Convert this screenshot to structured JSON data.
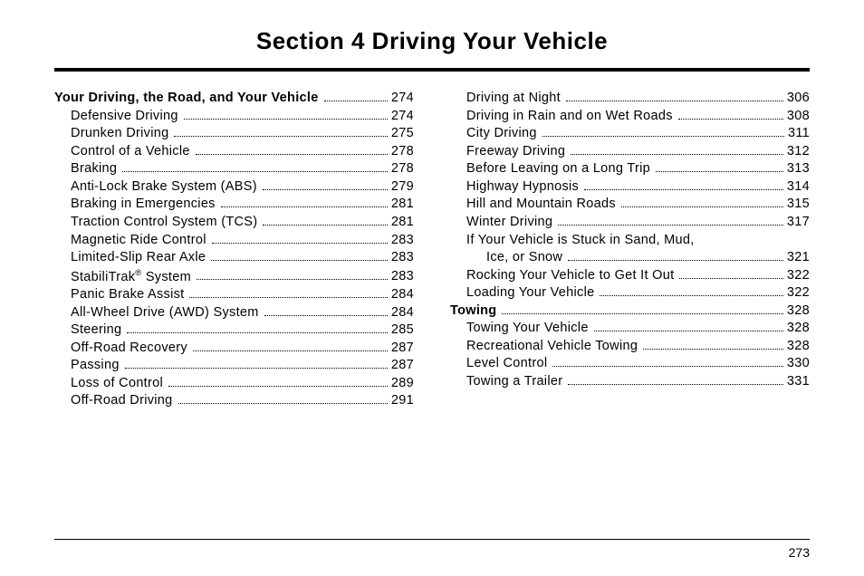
{
  "title": "Section  4    Driving Your Vehicle",
  "page_number": "273",
  "left_column": [
    {
      "label": "Your Driving, the Road, and Your Vehicle",
      "page": "274",
      "bold": true,
      "indent": 0
    },
    {
      "label": "Defensive Driving",
      "page": "274",
      "indent": 1
    },
    {
      "label": "Drunken Driving",
      "page": "275",
      "indent": 1
    },
    {
      "label": "Control of a Vehicle",
      "page": "278",
      "indent": 1
    },
    {
      "label": "Braking",
      "page": "278",
      "indent": 1
    },
    {
      "label": "Anti-Lock Brake System (ABS)",
      "page": "279",
      "indent": 1
    },
    {
      "label": "Braking in Emergencies",
      "page": "281",
      "indent": 1
    },
    {
      "label": "Traction Control System (TCS)",
      "page": "281",
      "indent": 1
    },
    {
      "label": "Magnetic Ride Control",
      "page": "283",
      "indent": 1
    },
    {
      "label": "Limited-Slip Rear Axle",
      "page": "283",
      "indent": 1
    },
    {
      "label_html": "StabiliTrak<sup class=\"reg\">®</sup> System",
      "label": "StabiliTrak® System",
      "page": "283",
      "indent": 1
    },
    {
      "label": "Panic Brake Assist",
      "page": "284",
      "indent": 1
    },
    {
      "label": "All-Wheel Drive (AWD) System",
      "page": "284",
      "indent": 1
    },
    {
      "label": "Steering",
      "page": "285",
      "indent": 1
    },
    {
      "label": "Off-Road Recovery",
      "page": "287",
      "indent": 1
    },
    {
      "label": "Passing",
      "page": "287",
      "indent": 1
    },
    {
      "label": "Loss of Control",
      "page": "289",
      "indent": 1
    },
    {
      "label": "Off-Road Driving",
      "page": "291",
      "indent": 1
    }
  ],
  "right_column": [
    {
      "label": "Driving at Night",
      "page": "306",
      "indent": 1
    },
    {
      "label": "Driving in Rain and on Wet Roads",
      "page": "308",
      "indent": 1
    },
    {
      "label": "City Driving",
      "page": "311",
      "indent": 1
    },
    {
      "label": "Freeway Driving",
      "page": "312",
      "indent": 1
    },
    {
      "label": "Before Leaving on a Long Trip",
      "page": "313",
      "indent": 1
    },
    {
      "label": "Highway Hypnosis",
      "page": "314",
      "indent": 1
    },
    {
      "label": "Hill and Mountain Roads",
      "page": "315",
      "indent": 1
    },
    {
      "label": "Winter Driving",
      "page": "317",
      "indent": 1
    },
    {
      "label": "If Your Vehicle is Stuck in Sand, Mud,",
      "page": "",
      "indent": 1,
      "no_page": true
    },
    {
      "label": "Ice, or Snow",
      "page": "321",
      "indent": 2
    },
    {
      "label": "Rocking Your Vehicle to Get It Out",
      "page": "322",
      "indent": 1
    },
    {
      "label": "Loading Your Vehicle",
      "page": "322",
      "indent": 1
    },
    {
      "label": "Towing",
      "page": "328",
      "bold": true,
      "indent": 0
    },
    {
      "label": "Towing Your Vehicle",
      "page": "328",
      "indent": 1
    },
    {
      "label": "Recreational Vehicle Towing",
      "page": "328",
      "indent": 1
    },
    {
      "label": "Level Control",
      "page": "330",
      "indent": 1
    },
    {
      "label": "Towing a Trailer",
      "page": "331",
      "indent": 1
    }
  ]
}
